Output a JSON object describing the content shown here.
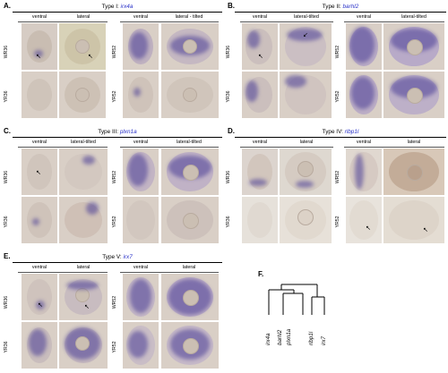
{
  "panels": [
    {
      "id": "A",
      "label": "A.",
      "type_prefix": "Type I:",
      "gene": "irx4a",
      "left_cols": [
        "ventral",
        "lateral"
      ],
      "right_cols": [
        "ventral",
        "lateral - tilted"
      ],
      "left_rows": [
        "WR36",
        "YR36"
      ],
      "right_rows": [
        "WR52",
        "YR52"
      ]
    },
    {
      "id": "B",
      "label": "B.",
      "type_prefix": "Type II:",
      "gene": "barhl2",
      "left_cols": [
        "ventral",
        "lateral-tilted"
      ],
      "right_cols": [
        "ventral",
        "lateral-tilted"
      ],
      "left_rows": [
        "WR36",
        "YR36"
      ],
      "right_rows": [
        "WR52",
        "YR52"
      ]
    },
    {
      "id": "C",
      "label": "C.",
      "type_prefix": "Type III:",
      "gene": "plxn1a",
      "left_cols": [
        "ventral",
        "lateral-tilted"
      ],
      "right_cols": [
        "ventral",
        "lateral-tilted"
      ],
      "left_rows": [
        "WR36",
        "YR36"
      ],
      "right_rows": [
        "WR52",
        "YR52"
      ]
    },
    {
      "id": "D",
      "label": "D.",
      "type_prefix": "Type IV:",
      "gene": "rlbp1l",
      "left_cols": [
        "ventral",
        "lateral"
      ],
      "right_cols": [
        "ventral",
        "lateral"
      ],
      "left_rows": [
        "WR36",
        "YR36"
      ],
      "right_rows": [
        "WR52",
        "YR52"
      ]
    },
    {
      "id": "E",
      "label": "E.",
      "type_prefix": "Type V:",
      "gene": "irx7",
      "left_cols": [
        "ventral",
        "lateral"
      ],
      "right_cols": [
        "ventral",
        "lateral"
      ],
      "left_rows": [
        "WR36",
        "YR36"
      ],
      "right_rows": [
        "WR52",
        "YR52"
      ]
    }
  ],
  "dendrogram": {
    "label": "F.",
    "leaves": [
      "irx4a",
      "barhl2",
      "plxn1a",
      "rlbp1l",
      "irx7"
    ]
  }
}
